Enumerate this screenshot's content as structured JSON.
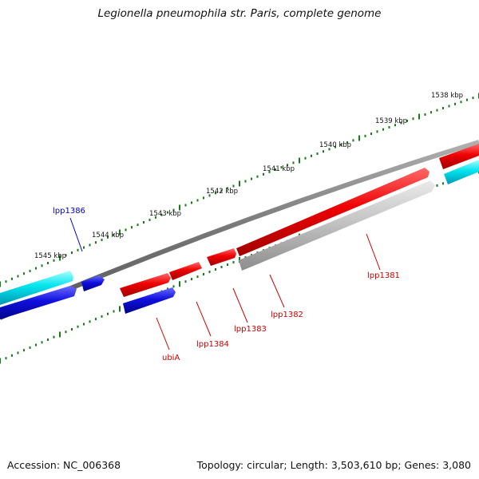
{
  "title": "Legionella pneumophila str. Paris, complete genome",
  "footer": {
    "accession": "Accession: NC_006368",
    "topology": "Topology: circular; Length: 3,503,610 bp; Genes: 3,080"
  },
  "scale_labels": [
    "1538 kbp",
    "1539 kbp",
    "1540 kbp",
    "1541 kbp",
    "1542 kbp",
    "1543 kbp",
    "1544 kbp",
    "1545 kbp"
  ],
  "gene_labels": [
    {
      "name": "lpp1386",
      "color": "#0000cc"
    },
    {
      "name": "lpp1381",
      "color": "#cc0000"
    },
    {
      "name": "lpp1382",
      "color": "#cc0000"
    },
    {
      "name": "lpp1383",
      "color": "#cc0000"
    },
    {
      "name": "lpp1384",
      "color": "#cc0000"
    },
    {
      "name": "ubiA",
      "color": "#cc0000"
    }
  ],
  "colors": {
    "backbone": "#7a7a7a",
    "tick": "#1a7a1a",
    "forward_gene": "#e00000",
    "reverse_gene": "#0a0ad0",
    "rna_gene": "#00d8e0",
    "pseudo_gene": "#b8b8b8"
  }
}
